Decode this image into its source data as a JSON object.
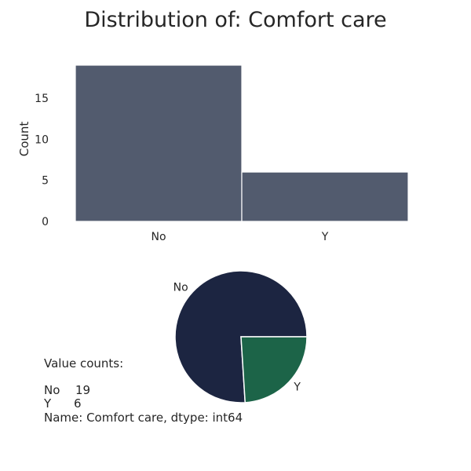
{
  "title": "Distribution of: Comfort care",
  "chart_data": [
    {
      "type": "bar",
      "categories": [
        "No",
        "Y"
      ],
      "values": [
        19,
        6
      ],
      "xlabel": "",
      "ylabel": "Count",
      "ylim": [
        0,
        19
      ],
      "yticks": [
        0,
        5,
        10,
        15
      ],
      "grid": false,
      "color": "#525b6e"
    },
    {
      "type": "pie",
      "labels": [
        "No",
        "Y"
      ],
      "values": [
        19,
        6
      ],
      "colors": [
        "#1c2541",
        "#1c6448"
      ]
    }
  ],
  "value_counts": {
    "header": "Value counts:",
    "rows": [
      {
        "label": "No",
        "count": "19"
      },
      {
        "label": "Y",
        "count": "6"
      }
    ],
    "footer": "Name: Comfort care, dtype: int64"
  }
}
